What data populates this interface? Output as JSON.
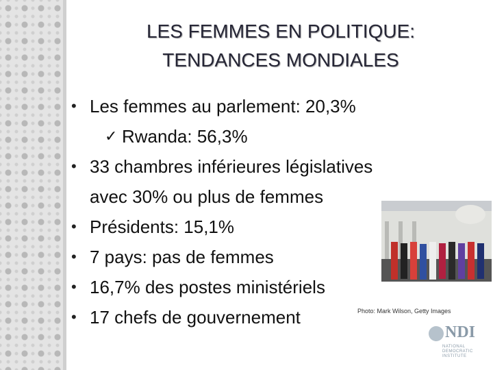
{
  "title": [
    "LES FEMMES EN POLITIQUE:",
    "TENDANCES MONDIALES"
  ],
  "bullets": [
    {
      "lines": [
        "Les femmes au parlement: 20,3%"
      ],
      "sub": [
        "Rwanda: 56,3%"
      ]
    },
    {
      "lines": [
        "33 chambres inférieures législatives",
        "avec 30% ou plus de femmes"
      ]
    },
    {
      "lines": [
        "Présidents: 15,1%"
      ]
    },
    {
      "lines": [
        "7 pays: pas de femmes"
      ]
    },
    {
      "lines": [
        "16,7% des postes ministériels"
      ]
    },
    {
      "lines": [
        "17 chefs de gouvernement"
      ]
    }
  ],
  "photo_credit": "Photo: Mark Wilson, Getty Images",
  "logo": {
    "name": "NDI",
    "full": [
      "NATIONAL",
      "DEMOCRATIC",
      "INSTITUTE"
    ]
  }
}
